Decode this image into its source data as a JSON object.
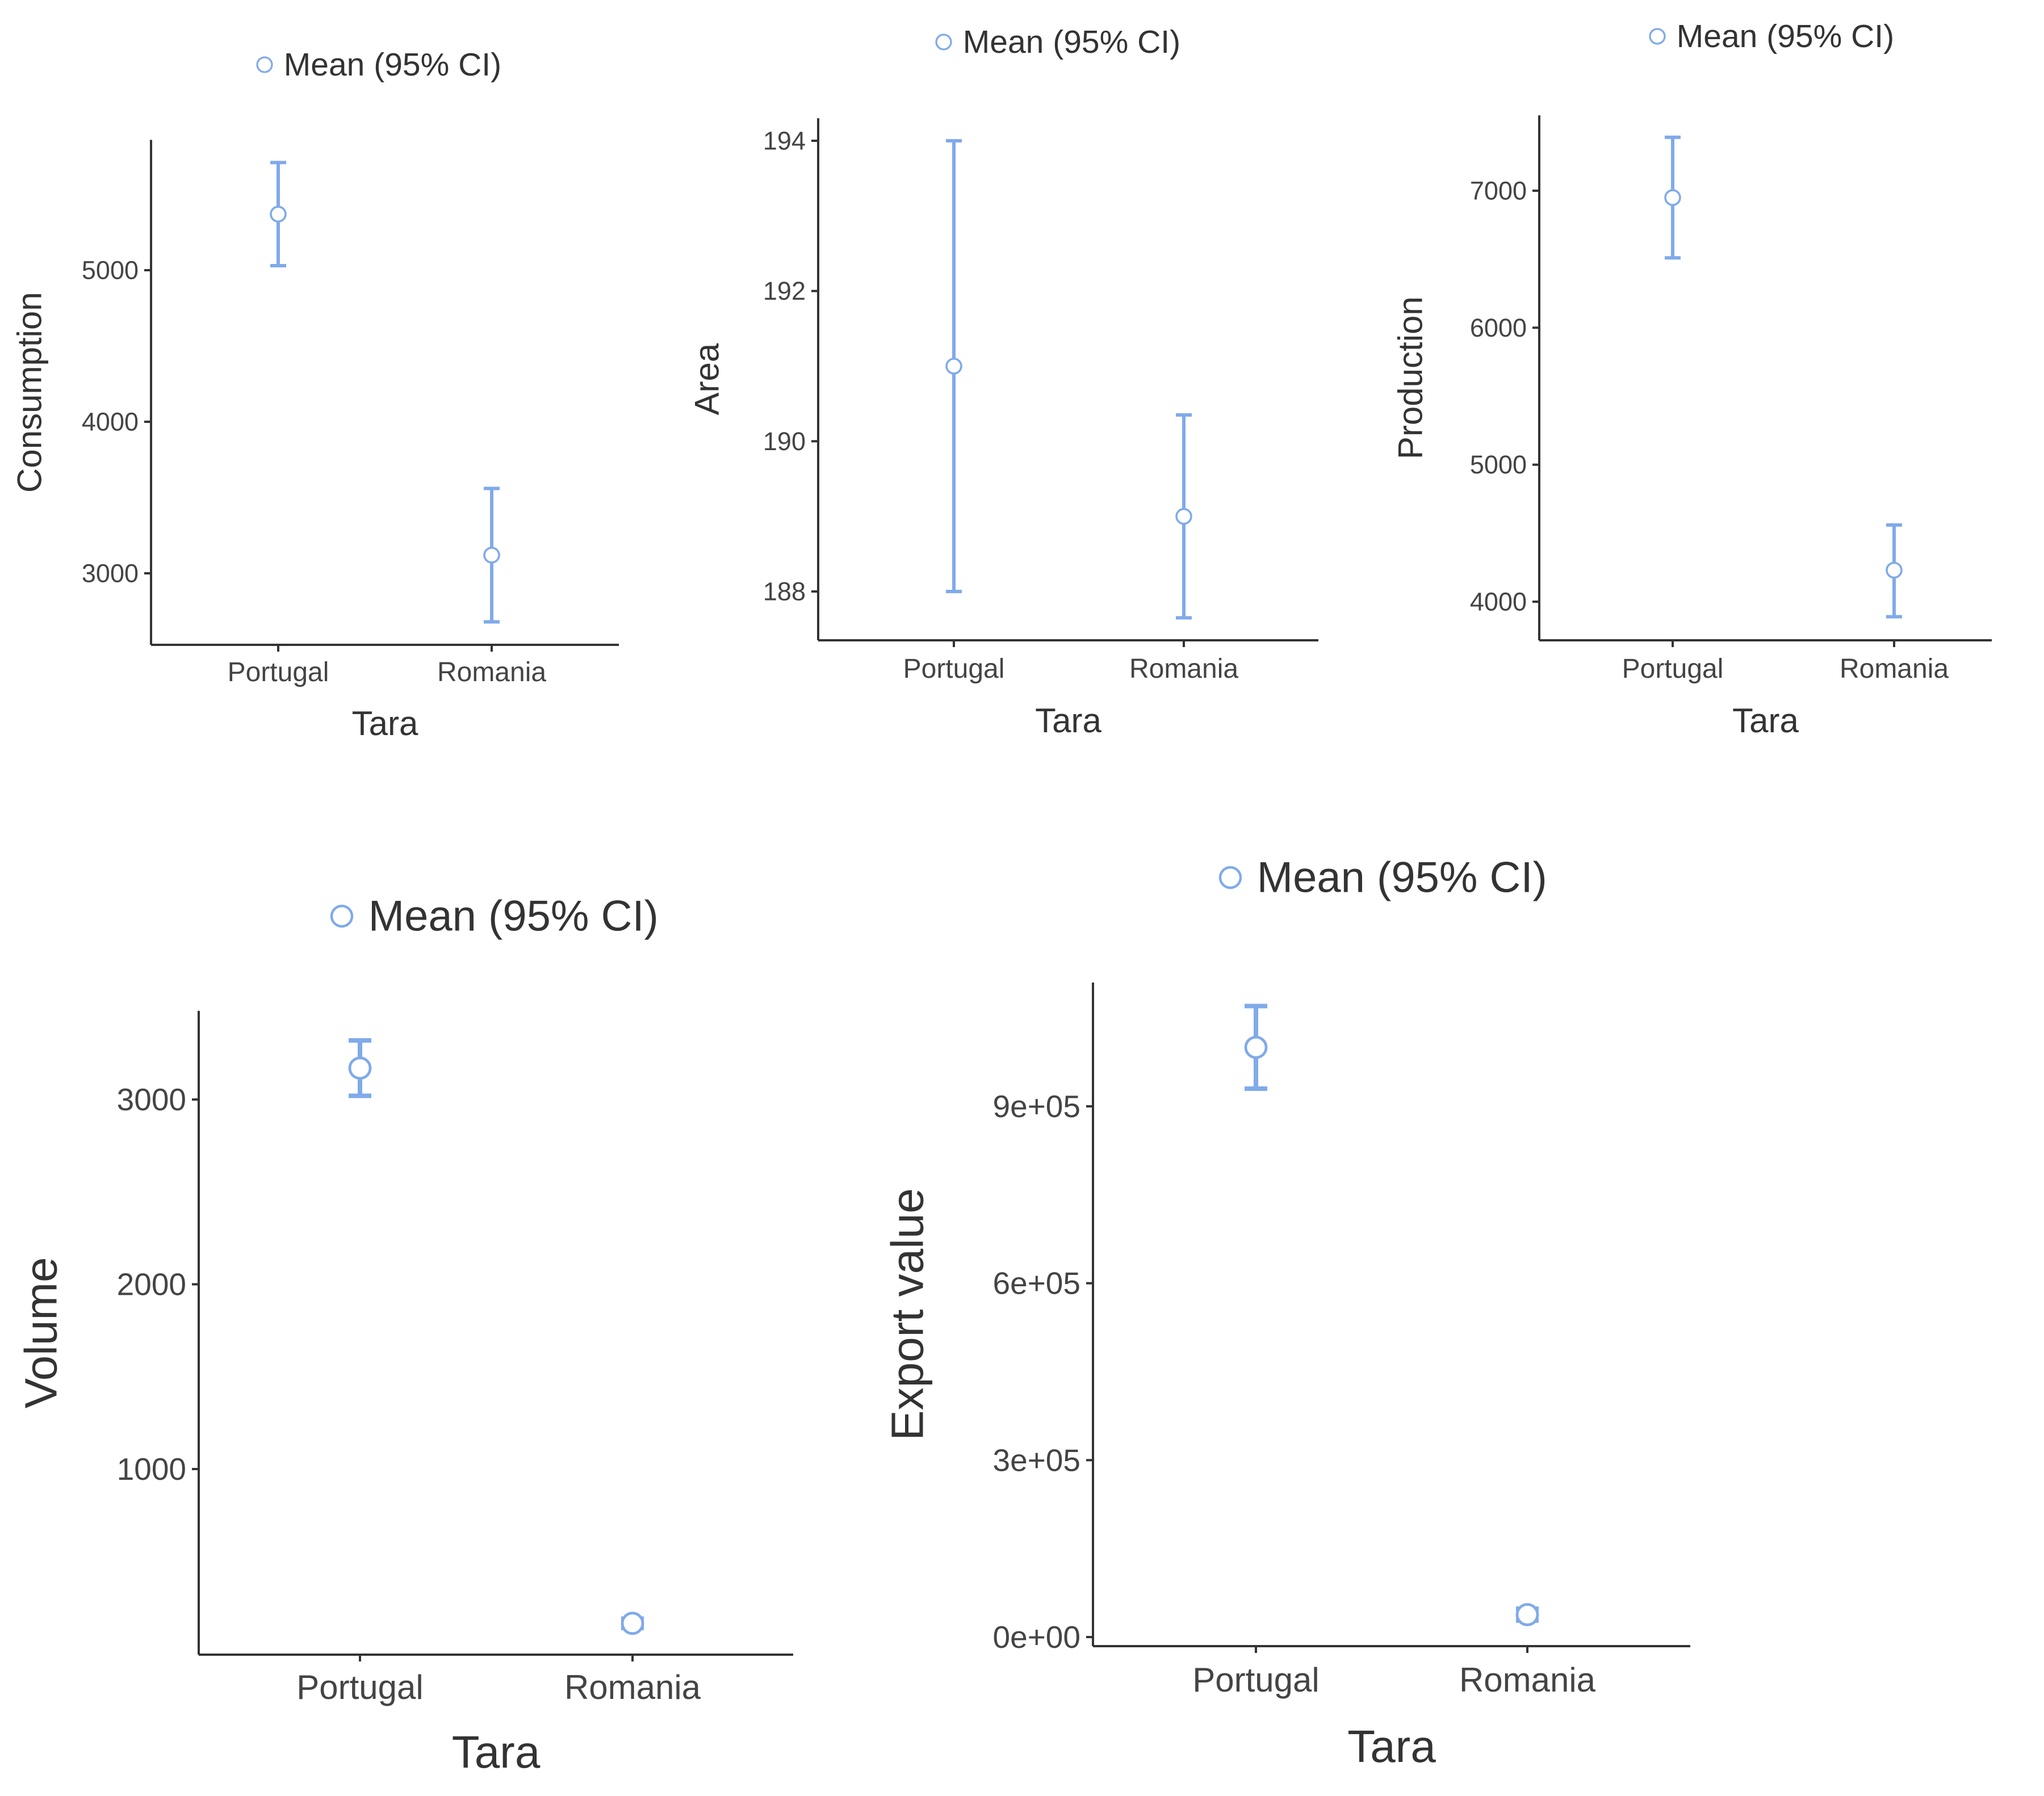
{
  "colors": {
    "series": "#80aaea",
    "axis": "#333333",
    "text": "#333333",
    "tick_text": "#444444",
    "background": "#ffffff"
  },
  "legend": {
    "label": "Mean (95% CI)"
  },
  "chart_data": [
    {
      "type": "errorbar",
      "title": "",
      "legend": "Mean (95% CI)",
      "xlabel": "Tara",
      "ylabel": "Consumption",
      "categories": [
        "Portugal",
        "Romania"
      ],
      "means": [
        5370,
        3120
      ],
      "lower": [
        5030,
        2680
      ],
      "upper": [
        5710,
        3560
      ],
      "yticks": [
        3000,
        4000,
        5000
      ],
      "tick_labels": [
        "3000",
        "4000",
        "5000"
      ],
      "ylim": [
        2540,
        5860
      ]
    },
    {
      "type": "errorbar",
      "title": "",
      "legend": "Mean (95% CI)",
      "xlabel": "Tara",
      "ylabel": "Area",
      "categories": [
        "Portugal",
        "Romania"
      ],
      "means": [
        191.0,
        189.0
      ],
      "lower": [
        188.0,
        187.65
      ],
      "upper": [
        194.0,
        190.35
      ],
      "yticks": [
        188,
        190,
        192,
        194
      ],
      "tick_labels": [
        "188",
        "190",
        "192",
        "194"
      ],
      "ylim": [
        187.3,
        194.3
      ]
    },
    {
      "type": "errorbar",
      "title": "",
      "legend": "Mean (95% CI)",
      "xlabel": "Tara",
      "ylabel": "Production",
      "categories": [
        "Portugal",
        "Romania"
      ],
      "means": [
        6950,
        4230
      ],
      "lower": [
        6510,
        3890
      ],
      "upper": [
        7390,
        4560
      ],
      "yticks": [
        4000,
        5000,
        6000,
        7000
      ],
      "tick_labels": [
        "4000",
        "5000",
        "6000",
        "7000"
      ],
      "ylim": [
        3720,
        7550
      ]
    },
    {
      "type": "errorbar",
      "title": "",
      "legend": "Mean (95% CI)",
      "xlabel": "Tara",
      "ylabel": "Volume",
      "categories": [
        "Portugal",
        "Romania"
      ],
      "means": [
        3170,
        165
      ],
      "lower": [
        3020,
        140
      ],
      "upper": [
        3320,
        190
      ],
      "yticks": [
        1000,
        2000,
        3000
      ],
      "tick_labels": [
        "1000",
        "2000",
        "3000"
      ],
      "ylim": [
        0,
        3480
      ]
    },
    {
      "type": "errorbar",
      "title": "",
      "legend": "Mean (95% CI)",
      "xlabel": "Tara",
      "ylabel": "Export value",
      "categories": [
        "Portugal",
        "Romania"
      ],
      "means": [
        1000000,
        38000
      ],
      "lower": [
        930000,
        28000
      ],
      "upper": [
        1070000,
        48000
      ],
      "yticks": [
        0,
        300000,
        600000,
        900000
      ],
      "tick_labels": [
        "0e+00",
        "3e+05",
        "6e+05",
        "9e+05"
      ],
      "ylim": [
        -3000,
        1110000
      ]
    }
  ]
}
